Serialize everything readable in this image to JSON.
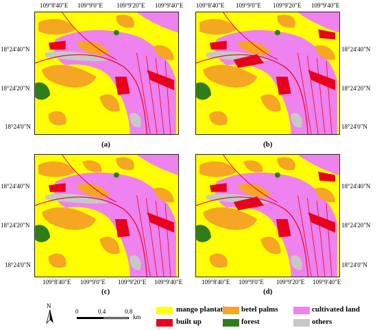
{
  "panels": [
    {
      "label": "(a)"
    },
    {
      "label": "(b)"
    },
    {
      "label": "(c)"
    },
    {
      "label": "(d)"
    }
  ],
  "axes": {
    "lon_ticks": [
      "109°8'40\"E",
      "109°9'0\"E",
      "109°9'20\"E",
      "109°9'40\"E"
    ],
    "lat_ticks": [
      "18°24'40\"N",
      "18°24'20\"N",
      "18°24'0\"N"
    ]
  },
  "north_arrow": {
    "label": "N"
  },
  "scale_bar": {
    "labels": [
      "0",
      "0.4",
      "0.8"
    ],
    "unit": "km"
  },
  "legend": [
    {
      "label": "mango plantations",
      "color": "#ffff00"
    },
    {
      "label": "betel palms",
      "color": "#f5a623"
    },
    {
      "label": "cultivated land",
      "color": "#ee82ee"
    },
    {
      "label": "built up",
      "color": "#e8001c"
    },
    {
      "label": "forest",
      "color": "#2e7d1b"
    },
    {
      "label": "others",
      "color": "#c8c8c8"
    }
  ]
}
